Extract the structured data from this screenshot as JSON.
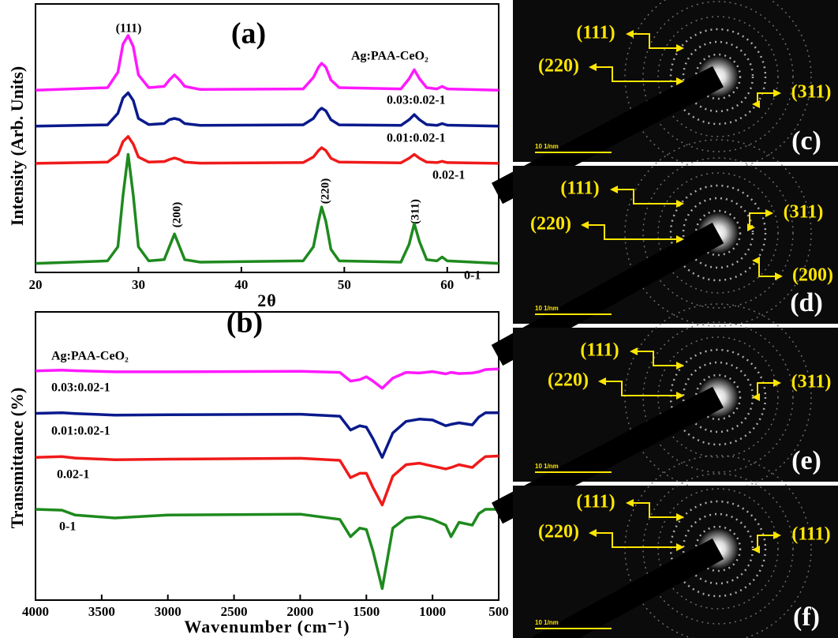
{
  "chart_data": [
    {
      "type": "line",
      "title": "(a)",
      "x_label": "2θ",
      "y_label": "Intensity (Arb. Units)",
      "legend_title": "Ag:PAA-CeO₂",
      "peak_labels": [
        "(111)",
        "(200)",
        "(220)",
        "(311)"
      ],
      "x": [
        20,
        27,
        28,
        28.5,
        29,
        29.5,
        30,
        31,
        32.5,
        33,
        33.5,
        34,
        34.5,
        36,
        46,
        47,
        47.5,
        47.8,
        48.2,
        48.7,
        49.5,
        55.5,
        56.3,
        56.8,
        57.3,
        58,
        59,
        59.5,
        60,
        65
      ],
      "xlim": [
        20,
        65
      ],
      "xticks": [
        20,
        30,
        40,
        50,
        60
      ],
      "ylim": [
        0,
        100
      ],
      "series": [
        {
          "name": "0.03:0.02-1",
          "color": "#ff19ff",
          "values": [
            71,
            72,
            78,
            89,
            92.3,
            88,
            77,
            72,
            72.5,
            75,
            77,
            75,
            72.5,
            71.3,
            71.5,
            76,
            80,
            81.5,
            80,
            75,
            72,
            71.5,
            75.5,
            79,
            75.5,
            72,
            71.5,
            72.5,
            71.5,
            71
          ]
        },
        {
          "name": "0.01:0.02-1",
          "color": "#0a1a8c",
          "values": [
            57,
            57.5,
            62,
            68,
            70,
            67,
            60,
            57.6,
            58,
            59.5,
            60,
            59.5,
            58,
            57.3,
            57.5,
            60,
            63,
            64,
            63,
            59.5,
            57.5,
            57.3,
            59.5,
            61.5,
            59.5,
            57.6,
            57.3,
            58,
            57.4,
            57
          ]
        },
        {
          "name": "0.02-1",
          "color": "#f01a1a",
          "values": [
            42.5,
            43,
            46,
            51,
            53,
            50,
            45,
            43,
            43.2,
            44,
            44.6,
            44,
            43,
            42.6,
            42.8,
            45,
            47.5,
            48.6,
            47.5,
            44.5,
            43,
            42.7,
            44.5,
            46,
            44.5,
            43,
            42.8,
            43.3,
            42.8,
            42.5
          ]
        },
        {
          "name": "0-1",
          "color": "#1e8a1e",
          "values": [
            3.5,
            4.5,
            10,
            30,
            46,
            30,
            10,
            4.5,
            5,
            10,
            15,
            10,
            5,
            4,
            4.5,
            10,
            20,
            25.5,
            20,
            9,
            4.5,
            4,
            11,
            19,
            12,
            5,
            4.5,
            6,
            4.5,
            3.5
          ]
        }
      ]
    },
    {
      "type": "line",
      "title": "(b)",
      "x_label": "Wavenumber (cm⁻¹)",
      "y_label": "Transmittance (%)",
      "legend_title": "Ag:PAA-CeO₂",
      "x": [
        4000,
        3800,
        3700,
        3400,
        3000,
        2000,
        1700,
        1620,
        1550,
        1500,
        1450,
        1380,
        1300,
        1200,
        1100,
        1000,
        900,
        860,
        800,
        700,
        650,
        600,
        500
      ],
      "xlim": [
        4000,
        500
      ],
      "xticks": [
        4000,
        3500,
        3000,
        2500,
        2000,
        1500,
        1000,
        500
      ],
      "ylim": [
        0,
        100
      ],
      "series": [
        {
          "name": "0.03:0.02-1",
          "color": "#ff19ff",
          "values": [
            79.5,
            79.8,
            79.6,
            79.2,
            79.2,
            79.4,
            79,
            76,
            76.5,
            77.5,
            76,
            73.5,
            77,
            79,
            78.8,
            79.3,
            78.5,
            79,
            78.6,
            78.8,
            79.2,
            80,
            80.2
          ]
        },
        {
          "name": "0.01:0.02-1",
          "color": "#0a1a8c",
          "values": [
            64.8,
            65,
            64.7,
            64.2,
            64.3,
            64.5,
            63.8,
            59,
            60.5,
            60,
            56,
            49.5,
            58,
            62,
            62.8,
            62.5,
            60.5,
            61,
            61.5,
            60.8,
            63.5,
            65,
            65
          ]
        },
        {
          "name": "0.02-1",
          "color": "#f01a1a",
          "values": [
            49.5,
            49.8,
            49.3,
            48.7,
            48.9,
            49.2,
            48.5,
            42.5,
            44,
            44,
            39,
            33,
            43,
            47,
            47.5,
            46.5,
            45.5,
            46,
            47,
            46,
            48,
            49.8,
            50
          ]
        },
        {
          "name": "0-1",
          "color": "#1e8a1e",
          "values": [
            31.5,
            31.2,
            29.5,
            28.5,
            29.5,
            29.8,
            28,
            22,
            25,
            24.5,
            17,
            4,
            25,
            28.5,
            29,
            28,
            26,
            22,
            27,
            26,
            30,
            31.5,
            31.5
          ]
        }
      ]
    }
  ],
  "images": [
    {
      "label": "(c)",
      "scale_bar": "10 1/nm",
      "spots": [
        "(111)",
        "(220)",
        "(311)"
      ]
    },
    {
      "label": "(d)",
      "scale_bar": "10 1/nm",
      "spots": [
        "(111)",
        "(220)",
        "(311)",
        "(200)"
      ]
    },
    {
      "label": "(e)",
      "scale_bar": "10 1/nm",
      "spots": [
        "(111)",
        "(220)",
        "(311)"
      ]
    },
    {
      "label": "(f)",
      "scale_bar": "10 1/nm",
      "spots": [
        "(111)",
        "(220)",
        "(111)"
      ]
    }
  ]
}
